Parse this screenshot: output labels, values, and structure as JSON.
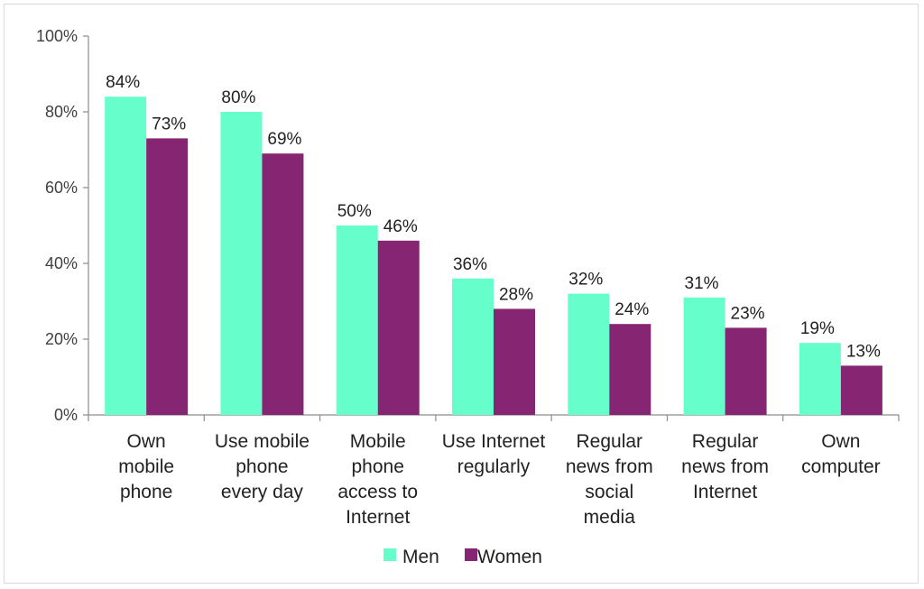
{
  "chart_data": {
    "type": "bar",
    "categories": [
      [
        "Own",
        "mobile",
        "phone"
      ],
      [
        "Use mobile",
        "phone",
        "every day"
      ],
      [
        "Mobile",
        "phone",
        "access to",
        "Internet"
      ],
      [
        "Use Internet",
        "regularly"
      ],
      [
        "Regular",
        "news from",
        "social",
        "media"
      ],
      [
        "Regular",
        "news from",
        "Internet"
      ],
      [
        "Own",
        "computer"
      ]
    ],
    "series": [
      {
        "name": "Men",
        "color": "#66FFCC",
        "values": [
          84,
          80,
          50,
          36,
          32,
          31,
          19
        ],
        "labels": [
          "84%",
          "80%",
          "50%",
          "36%",
          "32%",
          "31%",
          "19%"
        ]
      },
      {
        "name": "Women",
        "color": "#862672",
        "values": [
          73,
          69,
          46,
          28,
          24,
          23,
          13
        ],
        "labels": [
          "73%",
          "69%",
          "46%",
          "28%",
          "24%",
          "23%",
          "13%"
        ]
      }
    ],
    "ylim": [
      0,
      100
    ],
    "yticks": [
      "0%",
      "20%",
      "40%",
      "60%",
      "80%",
      "100%"
    ],
    "grid": false,
    "legend": "bottom"
  }
}
